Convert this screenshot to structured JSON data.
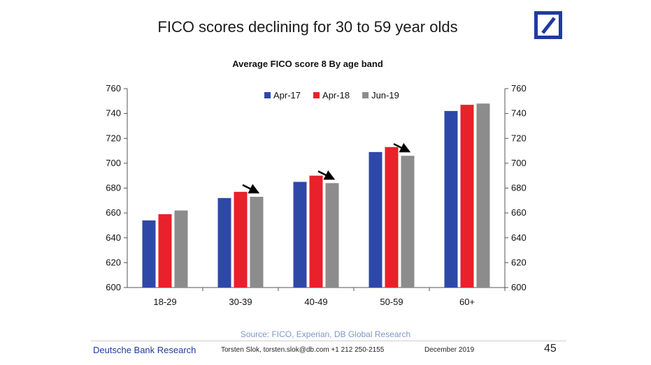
{
  "slide": {
    "title": "FICO scores declining for 30 to 59 year olds",
    "source": "Source: FICO, Experian, DB Global Research",
    "footer_brand": "Deutsche Bank Research",
    "footer_contact": "Torsten Slok, torsten.slok@db.com +1 212 250-2155",
    "footer_date": "December 2019",
    "page_number": "45"
  },
  "colors": {
    "brand": "#1f3aa0",
    "axis": "#555555"
  },
  "chart_data": {
    "type": "bar",
    "title": "Average FICO score 8 By age band",
    "categories": [
      "18-29",
      "30-39",
      "40-49",
      "50-59",
      "60+"
    ],
    "series": [
      {
        "name": "Apr-17",
        "color": "#2e48a8",
        "values": [
          654,
          672,
          685,
          709,
          742
        ]
      },
      {
        "name": "Apr-18",
        "color": "#e8212a",
        "values": [
          659,
          677,
          690,
          713,
          747
        ]
      },
      {
        "name": "Jun-19",
        "color": "#8c8c8c",
        "values": [
          662,
          673,
          684,
          706,
          748
        ]
      }
    ],
    "ylim": [
      600,
      760
    ],
    "yticks": [
      600,
      620,
      640,
      660,
      680,
      700,
      720,
      740,
      760
    ],
    "secondary_axis": true,
    "legend_position": "top",
    "grid": false,
    "annotations": {
      "decline_arrows_on": [
        "30-39",
        "40-49",
        "50-59"
      ]
    }
  }
}
